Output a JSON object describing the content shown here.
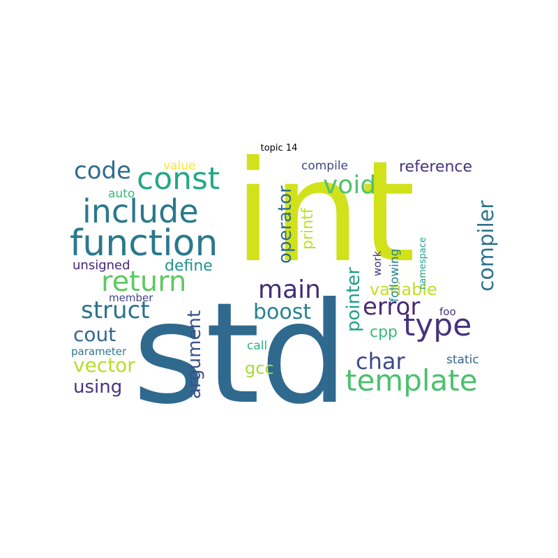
{
  "title": "topic 14",
  "words": [
    {
      "text": "std",
      "color": "#30698e"
    },
    {
      "text": "int",
      "color": "#d1e21b"
    },
    {
      "text": "function",
      "color": "#2a788e"
    },
    {
      "text": "include",
      "color": "#2a788e"
    },
    {
      "text": "const",
      "color": "#22a884"
    },
    {
      "text": "return",
      "color": "#5ec962"
    },
    {
      "text": "template",
      "color": "#4ac16d"
    },
    {
      "text": "type",
      "color": "#46327e"
    },
    {
      "text": "main",
      "color": "#3f2d77"
    },
    {
      "text": "error",
      "color": "#482878"
    },
    {
      "text": "struct",
      "color": "#2c728e"
    },
    {
      "text": "code",
      "color": "#2f6c8e"
    },
    {
      "text": "void",
      "color": "#4ec36b"
    },
    {
      "text": "char",
      "color": "#3e4989"
    },
    {
      "text": "compiler",
      "color": "#2c728e"
    },
    {
      "text": "boost",
      "color": "#26828e"
    },
    {
      "text": "cout",
      "color": "#31688e"
    },
    {
      "text": "vector",
      "color": "#b5de2b"
    },
    {
      "text": "using",
      "color": "#463480"
    },
    {
      "text": "argument",
      "color": "#3b528b"
    },
    {
      "text": "operator",
      "color": "#2e6e8e"
    },
    {
      "text": "pointer",
      "color": "#1f9e89"
    },
    {
      "text": "reference",
      "color": "#46337f"
    },
    {
      "text": "variable",
      "color": "#c2df23"
    },
    {
      "text": "define",
      "color": "#20928c"
    },
    {
      "text": "printf",
      "color": "#c2df23"
    },
    {
      "text": "gcc",
      "color": "#a8db34"
    },
    {
      "text": "cpp",
      "color": "#3aba76"
    },
    {
      "text": "unsigned",
      "color": "#482475"
    },
    {
      "text": "compile",
      "color": "#3f4788"
    },
    {
      "text": "auto",
      "color": "#35b779"
    },
    {
      "text": "value",
      "color": "#fde725"
    },
    {
      "text": "following",
      "color": "#25858e"
    },
    {
      "text": "static",
      "color": "#31688e"
    },
    {
      "text": "call",
      "color": "#2db27d"
    },
    {
      "text": "work",
      "color": "#46327e"
    },
    {
      "text": "member",
      "color": "#414487"
    },
    {
      "text": "parameter",
      "color": "#2a788e"
    },
    {
      "text": "foo",
      "color": "#46337f"
    },
    {
      "text": "namespace",
      "color": "#1fa187"
    }
  ]
}
